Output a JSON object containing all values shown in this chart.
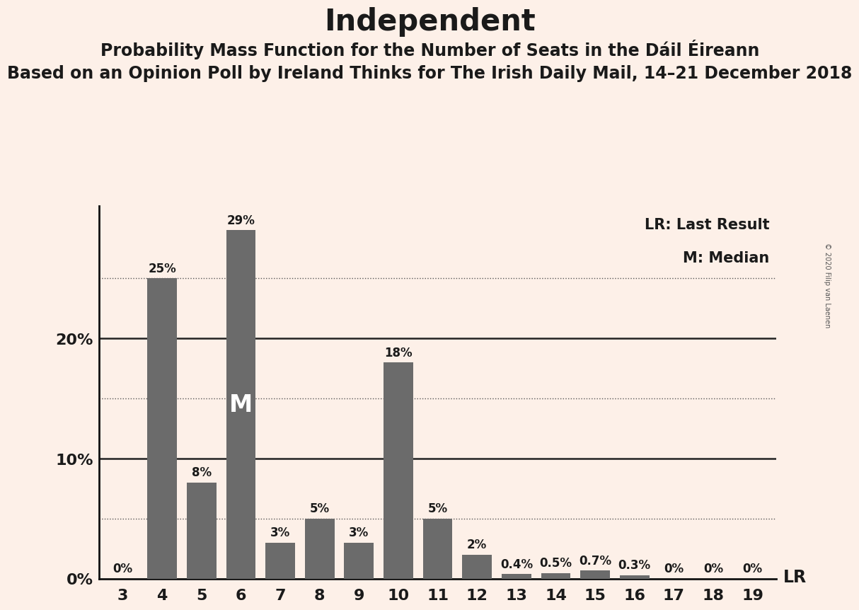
{
  "title": "Independent",
  "subtitle1": "Probability Mass Function for the Number of Seats in the Dáil Éireann",
  "subtitle2": "Based on an Opinion Poll by Ireland Thinks for The Irish Daily Mail, 14–21 December 2018",
  "categories": [
    3,
    4,
    5,
    6,
    7,
    8,
    9,
    10,
    11,
    12,
    13,
    14,
    15,
    16,
    17,
    18,
    19
  ],
  "values": [
    0.0,
    25.0,
    8.0,
    29.0,
    3.0,
    5.0,
    3.0,
    18.0,
    5.0,
    2.0,
    0.4,
    0.5,
    0.7,
    0.3,
    0.0,
    0.0,
    0.0
  ],
  "labels": [
    "0%",
    "25%",
    "8%",
    "29%",
    "3%",
    "5%",
    "3%",
    "18%",
    "5%",
    "2%",
    "0.4%",
    "0.5%",
    "0.7%",
    "0.3%",
    "0%",
    "0%",
    "0%"
  ],
  "bar_color": "#6b6b6b",
  "background_color": "#fdf0e8",
  "median_bar": 6,
  "median_label": "M",
  "dotted_lines": [
    5.0,
    15.0,
    25.0
  ],
  "solid_lines": [
    10.0,
    20.0
  ],
  "ytick_positions": [
    0,
    10,
    20
  ],
  "ytick_labels": [
    "0%",
    "10%",
    "20%"
  ],
  "legend_lr": "LR: Last Result",
  "legend_m": "M: Median",
  "lr_text": "LR",
  "copyright": "© 2020 Filip van Laenen",
  "title_fontsize": 30,
  "subtitle1_fontsize": 17,
  "subtitle2_fontsize": 17,
  "label_fontsize": 12,
  "tick_fontsize": 16,
  "legend_fontsize": 15,
  "ylim": [
    0,
    31
  ]
}
